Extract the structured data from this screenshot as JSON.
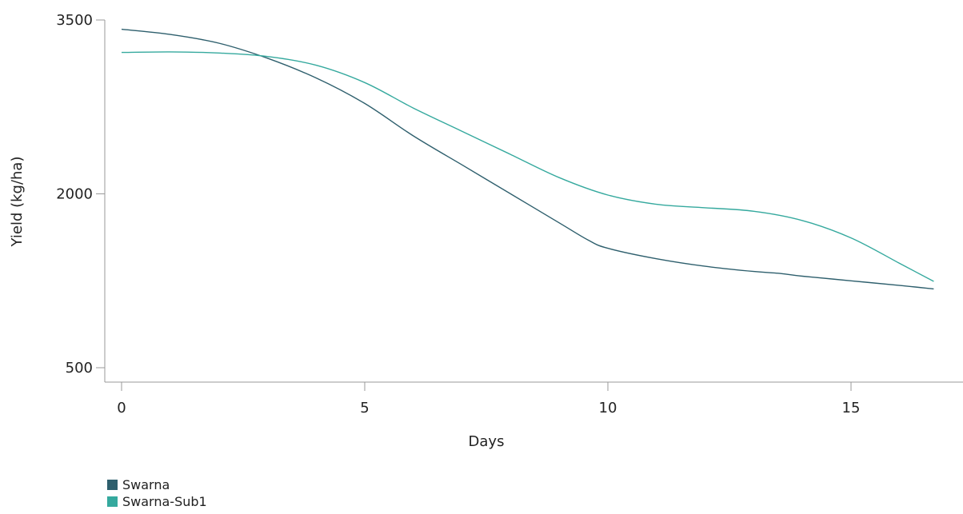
{
  "chart_data": {
    "type": "line",
    "title": "",
    "xlabel": "Days",
    "ylabel": "Yield (kg/ha)",
    "xlim": [
      -0.35,
      17.5
    ],
    "ylim": [
      500,
      3500
    ],
    "xticks": [
      0,
      5,
      10,
      15
    ],
    "yticks": [
      500,
      2000,
      3500
    ],
    "grid": false,
    "legend_position": "bottom-left",
    "series": [
      {
        "name": "Swarna",
        "color": "#2e5f6d",
        "points": [
          [
            0,
            3420
          ],
          [
            1,
            3375
          ],
          [
            2,
            3300
          ],
          [
            3,
            3170
          ],
          [
            4,
            3000
          ],
          [
            5,
            2780
          ],
          [
            6,
            2500
          ],
          [
            7,
            2250
          ],
          [
            8,
            2000
          ],
          [
            9,
            1750
          ],
          [
            9.6,
            1600
          ],
          [
            10,
            1530
          ],
          [
            11,
            1440
          ],
          [
            12,
            1375
          ],
          [
            13,
            1330
          ],
          [
            13.5,
            1315
          ],
          [
            14,
            1290
          ],
          [
            15,
            1250
          ],
          [
            16,
            1210
          ],
          [
            16.7,
            1180
          ]
        ]
      },
      {
        "name": "Swarna-Sub1",
        "color": "#35a99e",
        "points": [
          [
            0,
            3220
          ],
          [
            1,
            3225
          ],
          [
            2,
            3215
          ],
          [
            3,
            3185
          ],
          [
            4,
            3110
          ],
          [
            5,
            2960
          ],
          [
            6,
            2740
          ],
          [
            7,
            2540
          ],
          [
            8,
            2340
          ],
          [
            9,
            2140
          ],
          [
            10,
            1990
          ],
          [
            11,
            1910
          ],
          [
            12,
            1880
          ],
          [
            13,
            1850
          ],
          [
            14,
            1770
          ],
          [
            15,
            1620
          ],
          [
            16,
            1400
          ],
          [
            16.7,
            1245
          ]
        ]
      }
    ]
  }
}
